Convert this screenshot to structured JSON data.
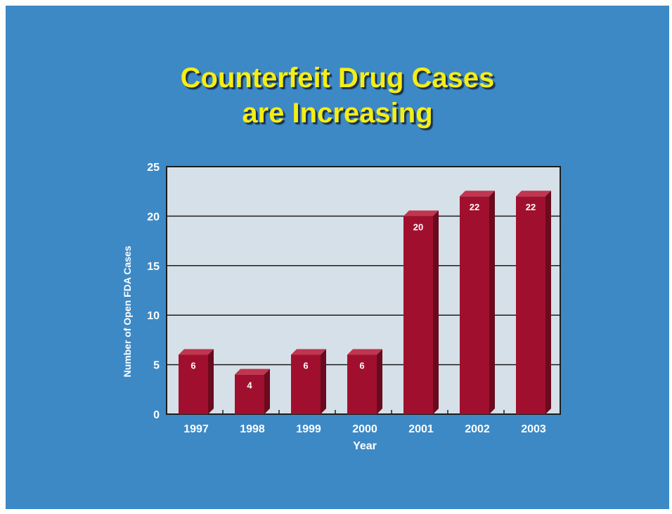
{
  "slide": {
    "title_line1": "Counterfeit Drug Cases",
    "title_line2": "are Increasing"
  },
  "colors": {
    "background": "#3d89c6",
    "title": "#f5ee14",
    "plot_area": "#d6e0e8",
    "bar_front": "#a0102e",
    "bar_top": "#c0354f",
    "bar_side": "#6a0a1e",
    "axis_text": "#ffffff"
  },
  "chart_data": {
    "type": "bar",
    "categories": [
      "1997",
      "1998",
      "1999",
      "2000",
      "2001",
      "2002",
      "2003"
    ],
    "values": [
      6,
      4,
      6,
      6,
      20,
      22,
      22
    ],
    "data_labels": [
      "6",
      "4",
      "6",
      "6",
      "20",
      "22",
      "22"
    ],
    "xlabel": "Year",
    "ylabel": "Number of Open FDA Cases",
    "ylim": [
      0,
      25
    ],
    "yticks": [
      "0",
      "5",
      "10",
      "15",
      "20",
      "25"
    ],
    "grid": true,
    "legend": "none",
    "style": "3d"
  }
}
